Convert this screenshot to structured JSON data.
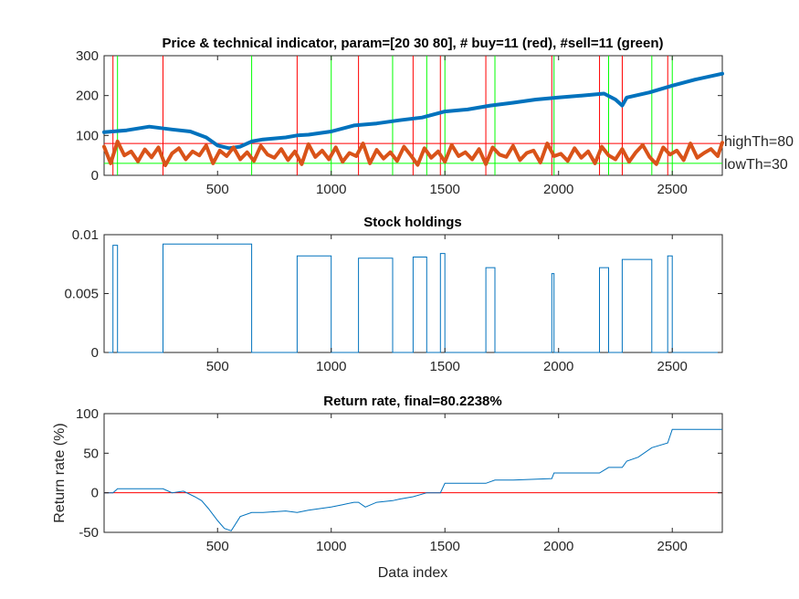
{
  "chart_data": [
    {
      "type": "line",
      "title": "Price & technical indicator, param=[20 30 80],  # buy=11 (red), #sell=11 (green)",
      "xlim": [
        1,
        2720
      ],
      "ylim": [
        0,
        300
      ],
      "xticks": [
        500,
        1000,
        1500,
        2000,
        2500
      ],
      "yticks": [
        0,
        100,
        200,
        300
      ],
      "annotations": [
        {
          "text": "highTh=80",
          "y": 80
        },
        {
          "text": "lowTh=30",
          "y": 30
        }
      ],
      "buy_x": [
        40,
        260,
        850,
        1120,
        1360,
        1480,
        1680,
        1970,
        2180,
        2280,
        2480
      ],
      "sell_x": [
        60,
        650,
        1000,
        1270,
        1420,
        1500,
        1720,
        1980,
        2220,
        2410,
        2500
      ],
      "series": [
        {
          "name": "price",
          "color": "#0072BD",
          "x": [
            1,
            100,
            200,
            300,
            380,
            450,
            500,
            550,
            600,
            650,
            700,
            800,
            850,
            900,
            1000,
            1100,
            1200,
            1300,
            1400,
            1500,
            1600,
            1700,
            1800,
            1900,
            2000,
            2100,
            2200,
            2250,
            2280,
            2300,
            2400,
            2500,
            2600,
            2720
          ],
          "y": [
            108,
            113,
            122,
            115,
            110,
            95,
            75,
            68,
            72,
            85,
            90,
            95,
            100,
            102,
            110,
            125,
            130,
            138,
            145,
            160,
            165,
            175,
            182,
            190,
            195,
            200,
            205,
            190,
            175,
            195,
            208,
            225,
            240,
            255
          ]
        },
        {
          "name": "indicator",
          "color": "#D95319",
          "x": [
            1,
            30,
            60,
            90,
            120,
            150,
            180,
            210,
            240,
            270,
            300,
            330,
            360,
            390,
            420,
            450,
            480,
            510,
            540,
            570,
            600,
            630,
            660,
            690,
            720,
            750,
            780,
            810,
            840,
            870,
            900,
            930,
            960,
            990,
            1020,
            1050,
            1080,
            1110,
            1140,
            1170,
            1200,
            1230,
            1260,
            1290,
            1320,
            1350,
            1380,
            1410,
            1440,
            1470,
            1500,
            1530,
            1560,
            1590,
            1620,
            1650,
            1680,
            1710,
            1740,
            1770,
            1800,
            1830,
            1860,
            1890,
            1920,
            1950,
            1980,
            2010,
            2040,
            2070,
            2100,
            2130,
            2160,
            2190,
            2220,
            2250,
            2280,
            2310,
            2340,
            2370,
            2400,
            2430,
            2460,
            2490,
            2520,
            2550,
            2580,
            2610,
            2640,
            2670,
            2700,
            2720
          ],
          "y": [
            72,
            30,
            85,
            50,
            60,
            35,
            65,
            45,
            70,
            25,
            55,
            68,
            40,
            60,
            50,
            75,
            30,
            62,
            48,
            70,
            40,
            58,
            36,
            74,
            52,
            44,
            66,
            38,
            60,
            28,
            78,
            46,
            62,
            40,
            70,
            34,
            56,
            48,
            80,
            30,
            64,
            42,
            58,
            36,
            72,
            50,
            26,
            68,
            44,
            60,
            34,
            76,
            48,
            58,
            40,
            66,
            28,
            70,
            52,
            46,
            74,
            38,
            56,
            62,
            32,
            80,
            48,
            54,
            36,
            68,
            44,
            60,
            30,
            72,
            50,
            40,
            66,
            34,
            58,
            76,
            46,
            28,
            70,
            52,
            62,
            38,
            80,
            44,
            56,
            66,
            48,
            82
          ]
        }
      ],
      "reference_lines": [
        {
          "y": 80,
          "color": "#FF0000"
        },
        {
          "y": 30,
          "color": "#00FF00"
        }
      ]
    },
    {
      "type": "line",
      "title": "Stock holdings",
      "xlim": [
        1,
        2720
      ],
      "ylim": [
        0,
        0.01
      ],
      "xticks": [
        500,
        1000,
        1500,
        2000,
        2500
      ],
      "yticks": [
        0,
        0.005,
        0.01
      ],
      "ytick_labels": [
        "0",
        "0.005",
        "0.01"
      ],
      "color": "#0072BD",
      "holdings": [
        {
          "start": 40,
          "end": 60,
          "value": 0.0091
        },
        {
          "start": 260,
          "end": 650,
          "value": 0.0092
        },
        {
          "start": 850,
          "end": 1000,
          "value": 0.0082
        },
        {
          "start": 1120,
          "end": 1270,
          "value": 0.008
        },
        {
          "start": 1360,
          "end": 1420,
          "value": 0.0081
        },
        {
          "start": 1480,
          "end": 1500,
          "value": 0.0084
        },
        {
          "start": 1680,
          "end": 1720,
          "value": 0.0072
        },
        {
          "start": 1970,
          "end": 1980,
          "value": 0.0067
        },
        {
          "start": 2180,
          "end": 2220,
          "value": 0.0072
        },
        {
          "start": 2280,
          "end": 2410,
          "value": 0.0079
        },
        {
          "start": 2480,
          "end": 2500,
          "value": 0.0082
        }
      ]
    },
    {
      "type": "line",
      "title": "Return rate, final=80.2238%",
      "xlabel": "Data index",
      "ylabel": "Return rate (%)",
      "xlim": [
        1,
        2720
      ],
      "ylim": [
        -50,
        100
      ],
      "xticks": [
        500,
        1000,
        1500,
        2000,
        2500
      ],
      "yticks": [
        -50,
        0,
        50,
        100
      ],
      "reference_line": {
        "y": 0,
        "color": "#FF0000"
      },
      "series": [
        {
          "name": "return",
          "color": "#0072BD",
          "x": [
            1,
            40,
            60,
            260,
            300,
            350,
            400,
            430,
            460,
            500,
            530,
            560,
            600,
            650,
            700,
            800,
            850,
            900,
            1000,
            1050,
            1100,
            1120,
            1150,
            1200,
            1270,
            1300,
            1360,
            1420,
            1480,
            1500,
            1600,
            1680,
            1720,
            1800,
            1970,
            1980,
            2100,
            2180,
            2220,
            2280,
            2300,
            2350,
            2410,
            2480,
            2500,
            2600,
            2720
          ],
          "x_note": "",
          "y": [
            0,
            0,
            5,
            5,
            0,
            2,
            -5,
            -10,
            -20,
            -35,
            -45,
            -48,
            -30,
            -25,
            -25,
            -23,
            -25,
            -22,
            -18,
            -15,
            -12,
            -12,
            -18,
            -12,
            -10,
            -8,
            -5,
            0,
            0,
            12,
            12,
            12,
            16,
            16,
            18,
            25,
            25,
            25,
            32,
            32,
            40,
            45,
            57,
            63,
            80,
            80,
            80
          ]
        }
      ]
    }
  ]
}
